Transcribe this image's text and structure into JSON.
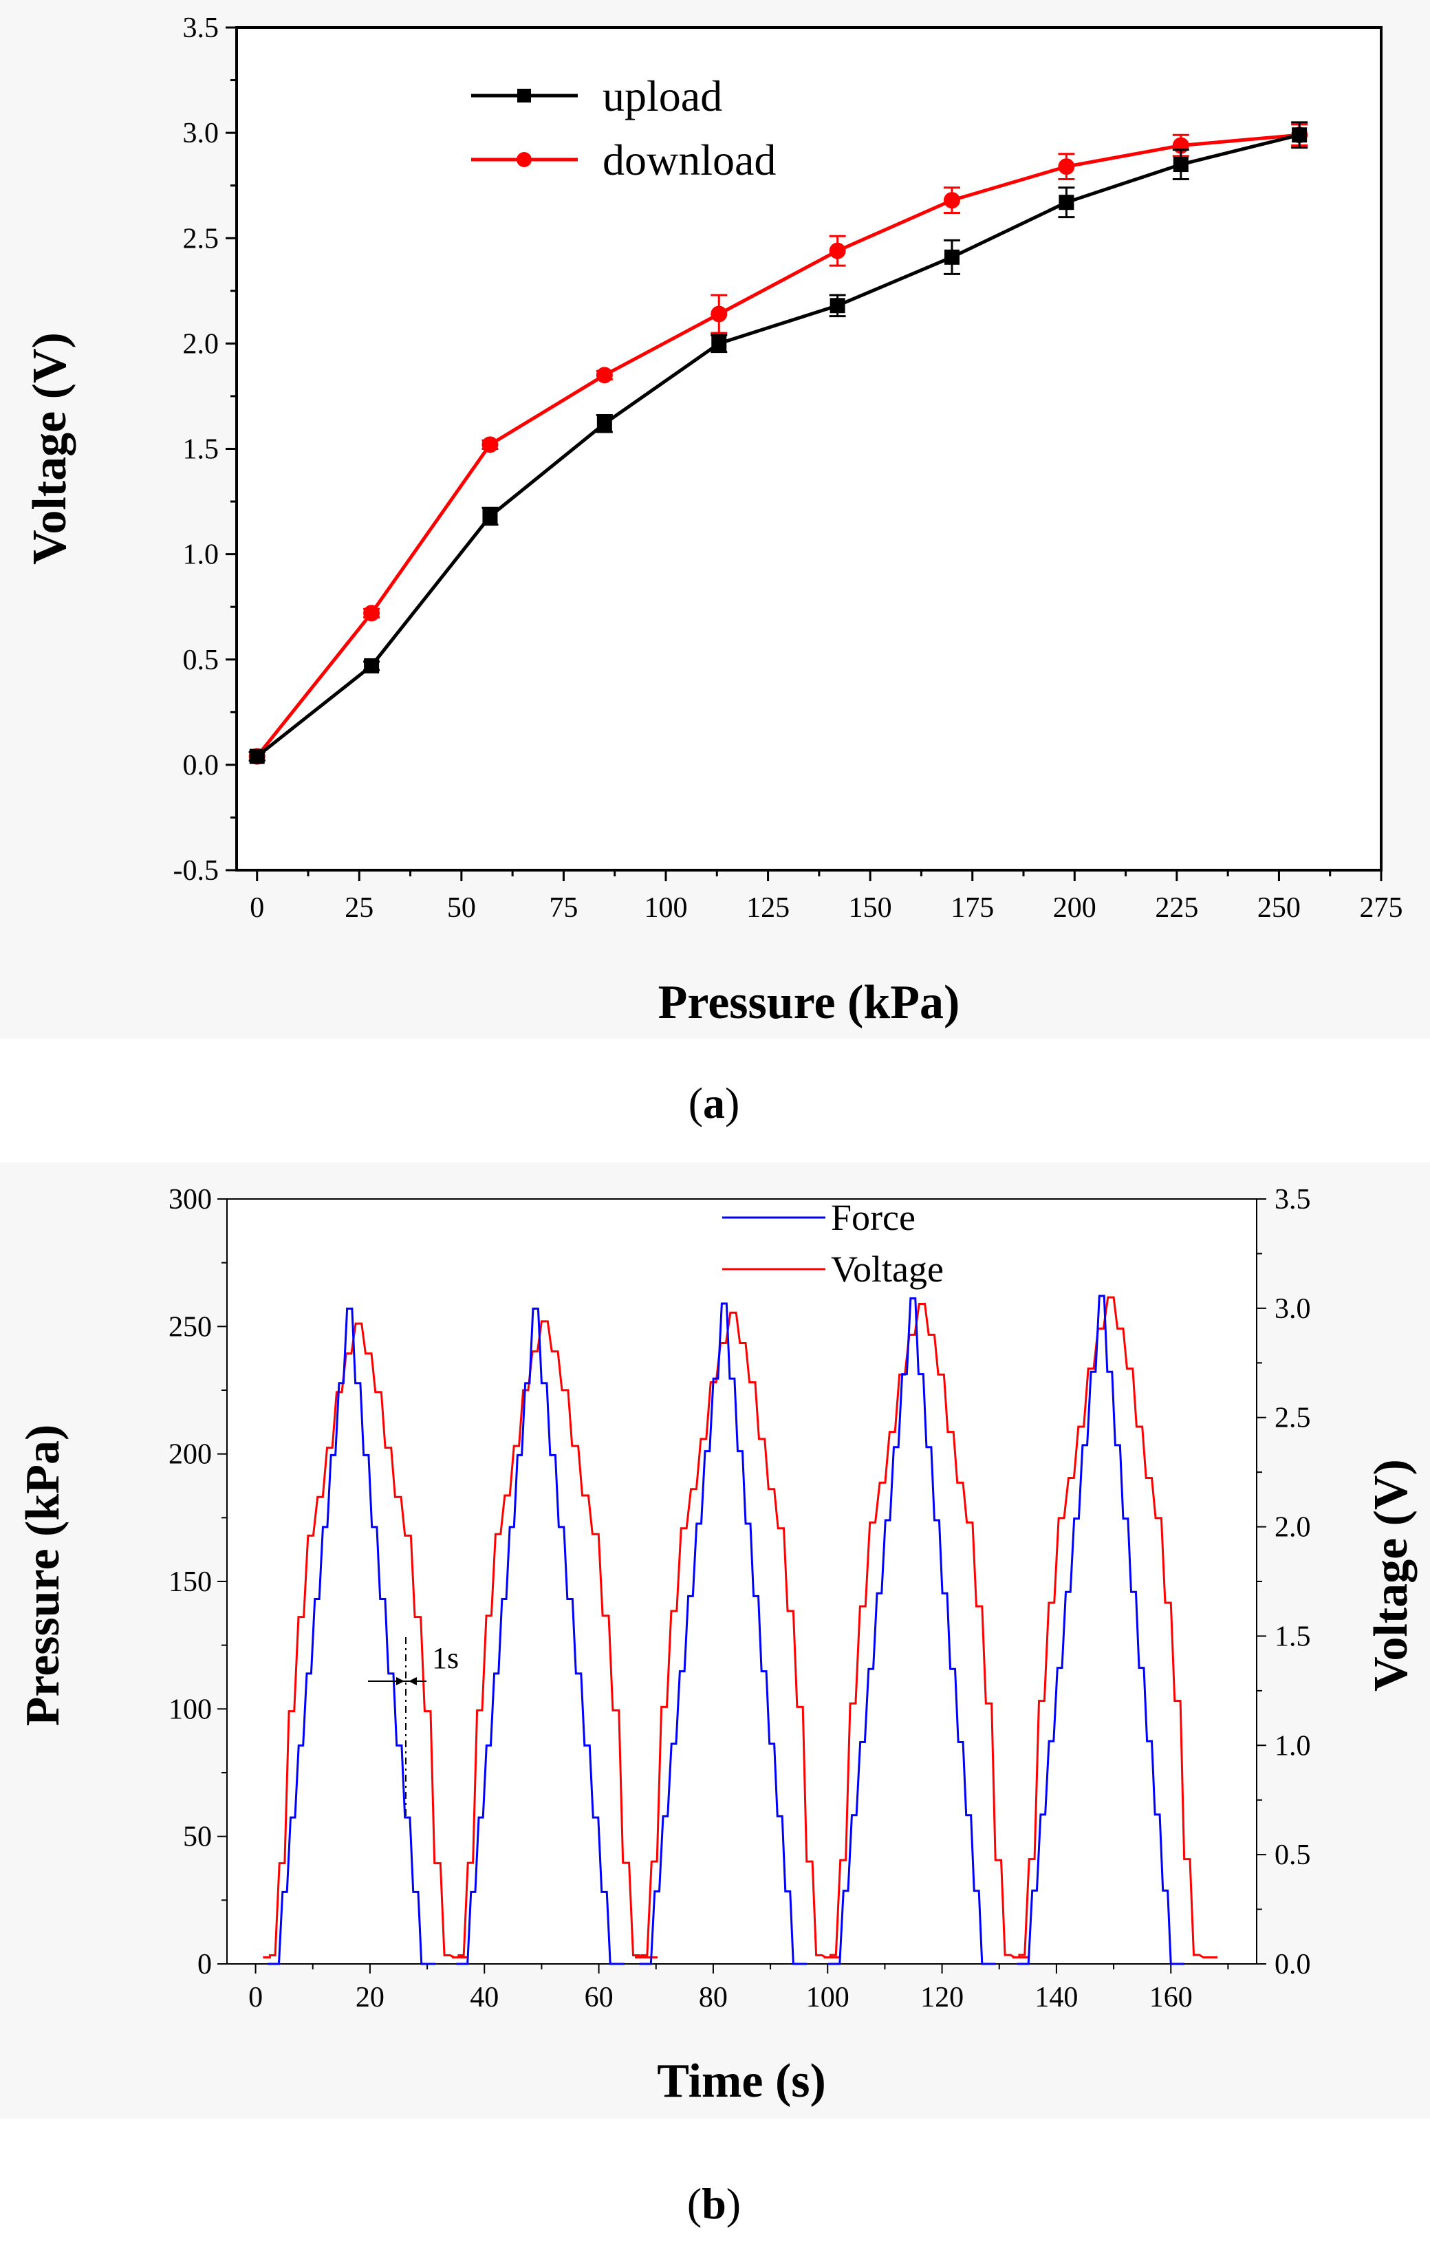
{
  "chart_data": [
    {
      "type": "line",
      "panel_label": "(a)",
      "panel_label_bold": "a",
      "xlabel": "Pressure (kPa)",
      "ylabel": "Voltage (V)",
      "xlim": [
        -5,
        275
      ],
      "ylim": [
        -0.5,
        3.5
      ],
      "xticks": [
        "0",
        "25",
        "50",
        "75",
        "100",
        "125",
        "150",
        "175",
        "200",
        "225",
        "250",
        "275"
      ],
      "yticks": [
        "-0.5",
        "0.0",
        "0.5",
        "1.0",
        "1.5",
        "2.0",
        "2.5",
        "3.0",
        "3.5"
      ],
      "legend_position": "top-left",
      "series": [
        {
          "name": "upload",
          "color": "#000000",
          "marker": "square",
          "x": [
            0,
            28,
            57,
            85,
            113,
            142,
            170,
            198,
            226,
            255
          ],
          "y": [
            0.04,
            0.47,
            1.18,
            1.62,
            2.0,
            2.18,
            2.41,
            2.67,
            2.85,
            2.99
          ],
          "err": [
            0.02,
            0.02,
            0.04,
            0.04,
            0.04,
            0.05,
            0.08,
            0.07,
            0.07,
            0.06
          ]
        },
        {
          "name": "download",
          "color": "#ff0000",
          "marker": "circle",
          "x": [
            0,
            28,
            57,
            85,
            113,
            142,
            170,
            198,
            226,
            255
          ],
          "y": [
            0.04,
            0.72,
            1.52,
            1.85,
            2.14,
            2.44,
            2.68,
            2.84,
            2.94,
            2.99
          ],
          "err": [
            0.02,
            0.02,
            0.02,
            0.02,
            0.09,
            0.07,
            0.06,
            0.06,
            0.05,
            0.05
          ]
        }
      ]
    },
    {
      "type": "line",
      "panel_label": "(b)",
      "panel_label_bold": "b",
      "xlabel": "Time (s)",
      "ylabel_left": "Pressure (kPa)",
      "ylabel_right": "Voltage (V)",
      "xlim": [
        -5,
        175
      ],
      "ylim_left": [
        0,
        300
      ],
      "ylim_right": [
        0,
        3.5
      ],
      "xticks": [
        "0",
        "20",
        "40",
        "60",
        "80",
        "100",
        "120",
        "140",
        "160"
      ],
      "yticks_left": [
        "0",
        "50",
        "100",
        "150",
        "200",
        "250",
        "300"
      ],
      "yticks_right": [
        "0.0",
        "0.5",
        "1.0",
        "1.5",
        "2.0",
        "2.5",
        "3.0",
        "3.5"
      ],
      "legend_position": "top-center",
      "annotation": "1s",
      "cycles": {
        "starts": [
          3,
          36,
          68,
          101,
          134
        ],
        "peak_time": [
          16.5,
          49,
          82,
          115,
          148
        ],
        "force_peak_kpa": [
          257,
          257,
          259,
          261,
          262
        ],
        "voltage_peak_v": [
          2.93,
          2.94,
          2.98,
          3.02,
          3.05
        ],
        "voltage_lag_s": 1.5,
        "cycle_end_offset_s": 26.5
      },
      "series": [
        {
          "name": "Force",
          "color": "#0000ff",
          "axis": "left",
          "shape_levels_kpa": [
            0,
            28,
            57,
            85,
            113,
            142,
            170,
            198,
            226,
            255
          ],
          "baseline_kpa": 0
        },
        {
          "name": "Voltage",
          "color": "#ff0000",
          "axis": "right",
          "shape_levels_v": [
            0.04,
            0.47,
            1.18,
            1.62,
            2.0,
            2.18,
            2.41,
            2.67,
            2.85,
            2.99
          ],
          "baseline_v": 0.03
        }
      ]
    }
  ]
}
